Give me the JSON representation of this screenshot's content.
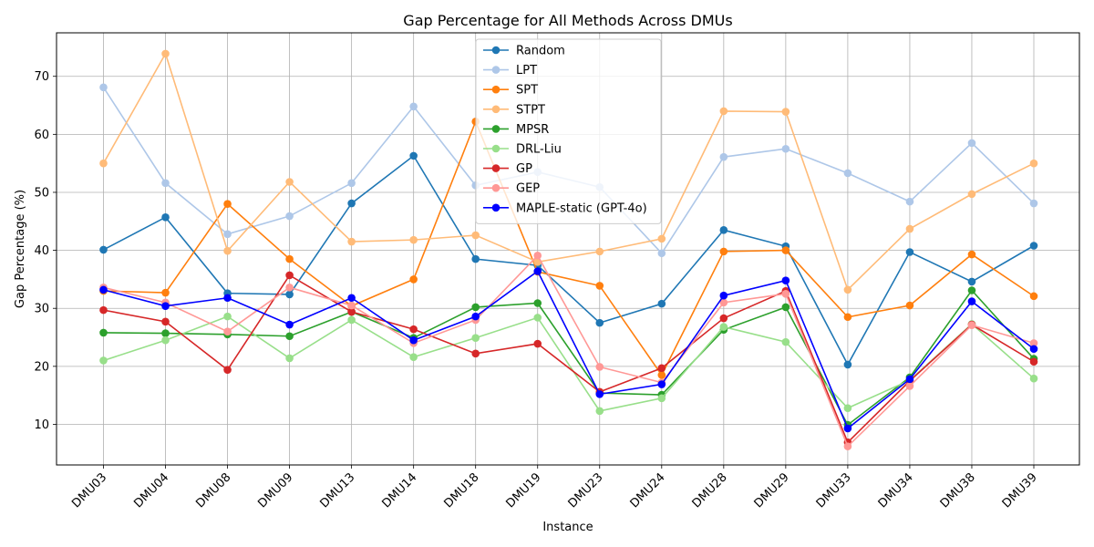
{
  "chart_data": {
    "type": "line",
    "title": "Gap Percentage for All Methods Across DMUs",
    "xlabel": "Instance",
    "ylabel": "Gap Percentage (%)",
    "ylim": [
      3,
      77.5
    ],
    "yticks": [
      10,
      20,
      30,
      40,
      50,
      60,
      70
    ],
    "grid": true,
    "legend_position": "top-center",
    "categories": [
      "DMU03",
      "DMU04",
      "DMU08",
      "DMU09",
      "DMU13",
      "DMU14",
      "DMU18",
      "DMU19",
      "DMU23",
      "DMU24",
      "DMU28",
      "DMU29",
      "DMU33",
      "DMU34",
      "DMU38",
      "DMU39"
    ],
    "series": [
      {
        "name": "Random",
        "color": "#1f77b4",
        "values": [
          40.1,
          45.7,
          32.6,
          32.4,
          48.1,
          56.3,
          38.5,
          37.4,
          27.5,
          30.8,
          43.5,
          40.7,
          20.3,
          39.7,
          34.6,
          40.8
        ]
      },
      {
        "name": "LPT",
        "color": "#aec7e8",
        "values": [
          68.1,
          51.6,
          42.8,
          45.9,
          51.6,
          64.8,
          51.2,
          53.5,
          50.9,
          39.5,
          56.1,
          57.5,
          53.3,
          48.4,
          58.5,
          48.1
        ]
      },
      {
        "name": "SPT",
        "color": "#ff7f0e",
        "values": [
          33.0,
          32.7,
          48.0,
          38.5,
          30.4,
          35.0,
          62.2,
          36.3,
          33.9,
          18.5,
          39.8,
          40.0,
          28.5,
          30.5,
          39.3,
          32.1
        ]
      },
      {
        "name": "STPT",
        "color": "#ffbb78",
        "values": [
          55.0,
          73.9,
          39.9,
          51.8,
          41.5,
          41.8,
          42.6,
          38.0,
          39.8,
          42.0,
          64.0,
          63.9,
          33.2,
          43.7,
          49.7,
          55.0
        ]
      },
      {
        "name": "MPSR",
        "color": "#2ca02c",
        "values": [
          25.8,
          25.7,
          25.5,
          25.2,
          29.4,
          24.9,
          30.2,
          30.9,
          15.4,
          15.1,
          26.3,
          30.2,
          9.9,
          18.1,
          33.1,
          21.3
        ]
      },
      {
        "name": "DRL-Liu",
        "color": "#98df8a",
        "values": [
          21.0,
          24.5,
          28.6,
          21.4,
          28.0,
          21.6,
          24.9,
          28.4,
          12.3,
          14.5,
          26.8,
          24.2,
          12.8,
          17.6,
          27.3,
          17.9
        ]
      },
      {
        "name": "GP",
        "color": "#d62728",
        "values": [
          29.7,
          27.7,
          19.4,
          35.7,
          29.4,
          26.4,
          22.2,
          23.9,
          15.6,
          19.7,
          28.3,
          33.0,
          6.9,
          17.5,
          27.2,
          20.8
        ]
      },
      {
        "name": "GEP",
        "color": "#ff9896",
        "values": [
          33.6,
          31.0,
          26.0,
          33.6,
          30.5,
          24.0,
          28.0,
          39.1,
          19.9,
          17.2,
          31.0,
          32.5,
          6.2,
          16.6,
          27.1,
          24.0
        ]
      },
      {
        "name": "MAPLE-static (GPT-4o)",
        "color": "#0000ff",
        "values": [
          33.2,
          30.4,
          31.8,
          27.2,
          31.8,
          24.5,
          28.6,
          36.4,
          15.2,
          16.9,
          32.2,
          34.8,
          9.3,
          17.8,
          31.2,
          23.0
        ]
      }
    ]
  }
}
